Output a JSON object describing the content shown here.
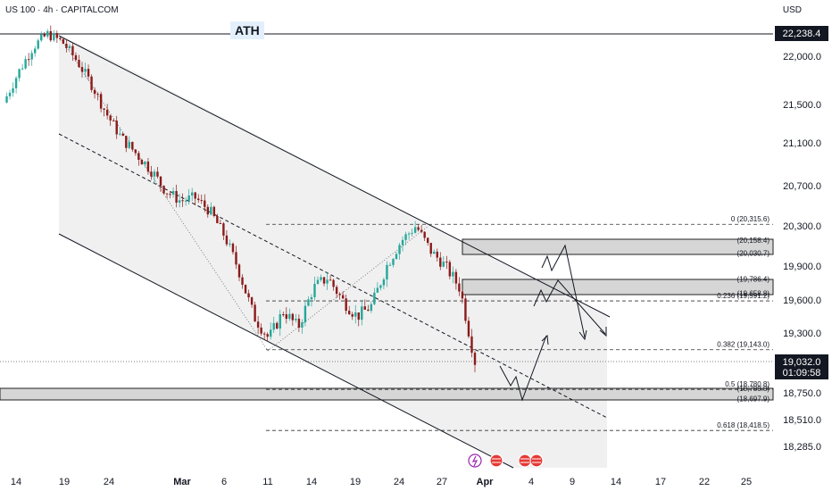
{
  "header": {
    "symbol": "US 100 · 4h · CAPITALCOM",
    "currency": "USD"
  },
  "annotations": {
    "ath_label": "ATH"
  },
  "price_axis": {
    "ticks": [
      "22,000.0",
      "21,500.0",
      "21,100.0",
      "20,700.0",
      "20,300.0",
      "19,900.0",
      "19,600.0",
      "19,300.0",
      "18,750.0",
      "18,510.0",
      "18,285.0"
    ],
    "ath_tag": "22,238.4",
    "current_tag": "19,032.0",
    "countdown": "01:09:58"
  },
  "time_axis": {
    "labels": [
      "14",
      "19",
      "24",
      "Mar",
      "6",
      "11",
      "14",
      "19",
      "24",
      "27",
      "Apr",
      "4",
      "9",
      "14",
      "17",
      "22",
      "25"
    ],
    "bold": [
      "Mar",
      "Apr"
    ]
  },
  "fib_levels": [
    {
      "label": "0 (20,315.6)",
      "value": 20315.6
    },
    {
      "label": "0.236 (19,591.2)",
      "value": 19591.2
    },
    {
      "label": "0.382 (19,143.0)",
      "value": 19143.0
    },
    {
      "label": "0.5 (18,780.8)",
      "value": 18780.8
    },
    {
      "label": "0.618 (18,418.5)",
      "value": 18418.5
    }
  ],
  "zone_labels": [
    {
      "label": "(20,158.4)",
      "value": 20158.4
    },
    {
      "label": "(20,030.7)",
      "value": 20030.7
    },
    {
      "label": "(19,786.4)",
      "value": 19786.4
    },
    {
      "label": "(19,658.8)",
      "value": 19658.8
    },
    {
      "label": "(18,788.8)",
      "value": 18788.8
    },
    {
      "label": "(18,697.9)",
      "value": 18697.9
    }
  ],
  "colors": {
    "bull": "#26a69a",
    "bear": "#8b1a1a",
    "zone": "#d6d6d6",
    "channel": "#f0f0f0",
    "line": "#131722",
    "event_purple": "#9c27b0",
    "event_flag": "#e53935"
  },
  "icons": [
    "lightning-event-icon",
    "us-flag-event-icon",
    "us-flag-event-icon",
    "us-flag-event-icon"
  ],
  "chart_data": {
    "type": "candlestick",
    "title": "US 100 · 4h · CAPITALCOM",
    "ylabel": "USD",
    "ylim": [
      18100,
      22350
    ],
    "x_labels": [
      "14",
      "19",
      "24",
      "Mar",
      "6",
      "11",
      "14",
      "19",
      "24",
      "27",
      "Apr",
      "4",
      "9",
      "14",
      "17",
      "22",
      "25"
    ],
    "series": [
      {
        "name": "price_path",
        "values": [
          21520,
          21830,
          22100,
          22238,
          22150,
          21950,
          21700,
          21400,
          21150,
          21000,
          20850,
          20650,
          20550,
          20580,
          20450,
          20200,
          19850,
          19450,
          19250,
          19500,
          19350,
          19700,
          19800,
          19600,
          19450,
          19550,
          19900,
          20150,
          20300,
          20050,
          19900,
          19700,
          19032
        ]
      }
    ],
    "horizontal_levels": [
      22238.4,
      19032.0,
      20315.6,
      20158.4,
      20030.7,
      19786.4,
      19658.8,
      19591.2,
      19143.0,
      18788.8,
      18780.8,
      18697.9,
      18418.5
    ],
    "grid": false
  }
}
